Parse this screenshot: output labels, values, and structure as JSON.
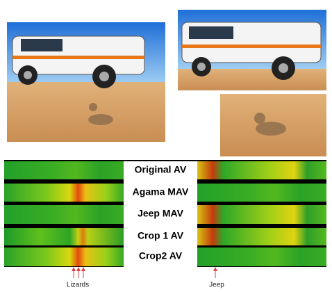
{
  "figure": {
    "rows": [
      "Original AV",
      "Agama MAV",
      "Jeep MAV",
      "Crop 1 AV",
      "Crop2 AV"
    ],
    "annotations": {
      "lizards": "Lizards",
      "jeep": "Jeep"
    }
  }
}
